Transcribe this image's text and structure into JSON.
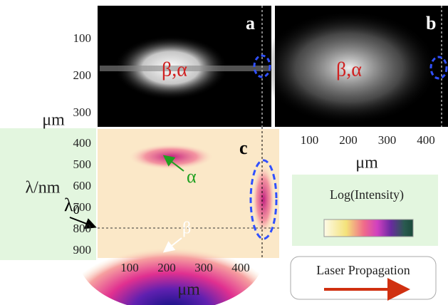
{
  "panels": {
    "a": {
      "label": "a",
      "annotation": "β,α"
    },
    "b": {
      "label": "b",
      "annotation": "β,α"
    },
    "c": {
      "label": "c",
      "alpha": "α",
      "beta": "β",
      "lambda0": {
        "symbol": "λ",
        "subscript": "0"
      }
    }
  },
  "top_y_axis": {
    "label": "μm",
    "ticks": [
      100,
      200,
      300
    ]
  },
  "c_y_axis": {
    "label": "λ/nm",
    "ticks": [
      400,
      500,
      600,
      700,
      800,
      900
    ]
  },
  "c_x_axis": {
    "label": "μm",
    "ticks": [
      100,
      200,
      300,
      400
    ]
  },
  "b_x_axis": {
    "label": "μm",
    "ticks": [
      100,
      200,
      300,
      400
    ]
  },
  "colorbar": {
    "label": "Log(Intensity)"
  },
  "propagation": {
    "label": "Laser Propagation"
  }
}
